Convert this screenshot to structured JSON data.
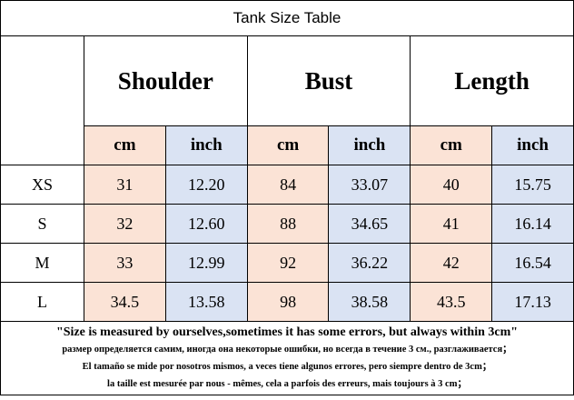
{
  "header": {
    "title": "Tank Size Table"
  },
  "table": {
    "groups": [
      "Shoulder",
      "Bust",
      "Length"
    ],
    "units": [
      "cm",
      "inch",
      "cm",
      "inch",
      "cm",
      "inch"
    ],
    "rows": [
      [
        "XS",
        "31",
        "12.20",
        "84",
        "33.07",
        "40",
        "15.75"
      ],
      [
        "S",
        "32",
        "12.60",
        "88",
        "34.65",
        "41",
        "16.14"
      ],
      [
        "M",
        "33",
        "12.99",
        "92",
        "36.22",
        "42",
        "16.54"
      ],
      [
        "L",
        "34.5",
        "13.58",
        "98",
        "38.58",
        "43.5",
        "17.13"
      ]
    ]
  },
  "notes": [
    "\"Size is measured by ourselves,sometimes it has some errors, but always within 3cm\"",
    "размер определяется самим, иногда она некоторые ошибки, но всегда в течение 3 см., разглаживается；",
    "El tamaño se mide por nosotros mismos, a veces tiene algunos errores, pero siempre dentro de 3cm；",
    "la taille est mesurée par nous - mêmes, cela a parfois des erreurs, mais toujours à 3 cm；"
  ]
}
